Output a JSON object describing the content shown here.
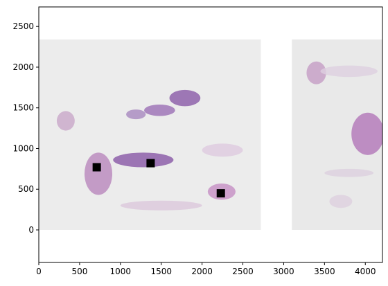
{
  "chart_data": {
    "type": "image",
    "title": "",
    "xlabel": "",
    "ylabel": "",
    "xlim": [
      0,
      4210
    ],
    "ylim": [
      -400,
      2740
    ],
    "x_ticks": [
      0,
      500,
      1000,
      1500,
      2000,
      2500,
      3000,
      3500,
      4000
    ],
    "y_ticks": [
      0,
      500,
      1000,
      1500,
      2000,
      2500
    ],
    "x_tick_labels": [
      "0",
      "500",
      "1000",
      "1500",
      "2000",
      "2500",
      "3000",
      "3500",
      "4000"
    ],
    "y_tick_labels": [
      "0",
      "500",
      "1000",
      "1500",
      "2000",
      "2500"
    ],
    "grid": false,
    "image_panels": [
      {
        "name": "slide-section-left",
        "x_range": [
          0,
          2720
        ],
        "y_range": [
          0,
          2340
        ],
        "background": "#ececec"
      },
      {
        "name": "slide-section-right",
        "x_range": [
          3100,
          4210
        ],
        "y_range": [
          0,
          2340
        ],
        "background": "#e9e9e9"
      }
    ],
    "tissue_regions": [
      {
        "cx": 1790,
        "cy": 1620,
        "rx": 190,
        "ry": 100,
        "color": "#8a5aa8"
      },
      {
        "cx": 1480,
        "cy": 1470,
        "rx": 190,
        "ry": 70,
        "color": "#9b6fb5"
      },
      {
        "cx": 1190,
        "cy": 1420,
        "rx": 120,
        "ry": 60,
        "color": "#a888bf"
      },
      {
        "cx": 330,
        "cy": 1340,
        "rx": 110,
        "ry": 120,
        "color": "#c9a8c9"
      },
      {
        "cx": 1280,
        "cy": 860,
        "rx": 370,
        "ry": 90,
        "color": "#8857a6"
      },
      {
        "cx": 2250,
        "cy": 980,
        "rx": 250,
        "ry": 80,
        "color": "#dfcbe0"
      },
      {
        "cx": 2240,
        "cy": 470,
        "rx": 170,
        "ry": 100,
        "color": "#c68fc4"
      },
      {
        "cx": 730,
        "cy": 690,
        "rx": 170,
        "ry": 260,
        "color": "#b987bd"
      },
      {
        "cx": 1500,
        "cy": 300,
        "rx": 500,
        "ry": 60,
        "color": "#dcc8dc"
      },
      {
        "cx": 3400,
        "cy": 1930,
        "rx": 120,
        "ry": 140,
        "color": "#c49cc4"
      },
      {
        "cx": 3800,
        "cy": 1950,
        "rx": 350,
        "ry": 70,
        "color": "#ddd0e0"
      },
      {
        "cx": 4030,
        "cy": 1180,
        "rx": 200,
        "ry": 260,
        "color": "#b275b8"
      },
      {
        "cx": 3800,
        "cy": 700,
        "rx": 300,
        "ry": 50,
        "color": "#dcd0df"
      },
      {
        "cx": 3700,
        "cy": 350,
        "rx": 140,
        "ry": 80,
        "color": "#ddd0df"
      }
    ],
    "markers": [
      {
        "x": 710,
        "y": 770,
        "label": ""
      },
      {
        "x": 1370,
        "y": 820,
        "label": ""
      },
      {
        "x": 2230,
        "y": 450,
        "label": ""
      }
    ]
  }
}
